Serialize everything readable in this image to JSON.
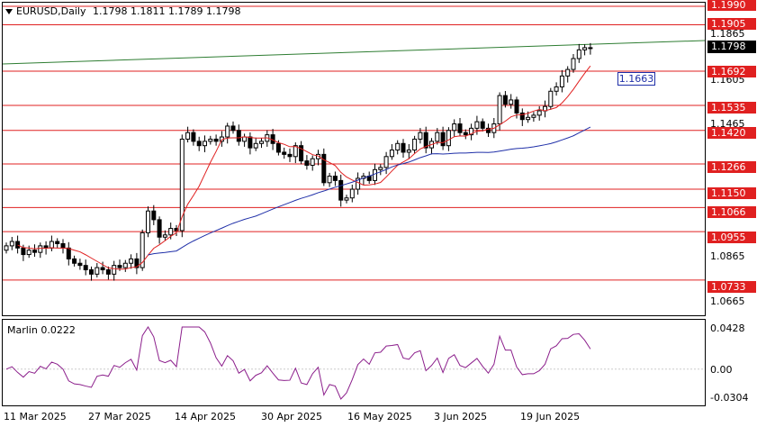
{
  "chart_header": {
    "symbol_label": "EURUSD,Daily",
    "open": "1.1798",
    "high": "1.1811",
    "low": "1.1789",
    "close": "1.1798",
    "dropdown_icon": "triangle-down-icon"
  },
  "price_axis": {
    "labels": [
      "1.1865",
      "1.1605",
      "1.1465",
      "1.0865",
      "1.0665"
    ],
    "levels": [
      "1.1990",
      "1.1905",
      "1.1692",
      "1.1535",
      "1.1420",
      "1.1266",
      "1.1150",
      "1.1066",
      "1.0955",
      "1.0733"
    ],
    "current_price": "1.1798",
    "ma_value": "1.1663"
  },
  "indicator": {
    "title": "Marlin 0.0222",
    "axis_labels": [
      "0.0428",
      "0.00",
      "-0.0304"
    ]
  },
  "time_axis": {
    "dates": [
      "11 Mar 2025",
      "27 Mar 2025",
      "14 Apr 2025",
      "30 Apr 2025",
      "16 May 2025",
      "3 Jun 2025",
      "19 Jun 2025"
    ]
  },
  "colors": {
    "level_line": "#e02020",
    "ma_blue": "#1f2fa8",
    "ma_red": "#e02020",
    "trend_green": "#2e7d32",
    "oscillator": "#8b1e8b"
  },
  "chart_data": {
    "type": "candlestick",
    "ohlc_last": {
      "open": 1.1798,
      "high": 1.1811,
      "low": 1.1789,
      "close": 1.1798
    },
    "horizontal_levels": [
      1.199,
      1.1905,
      1.1692,
      1.1535,
      1.142,
      1.1266,
      1.115,
      1.1066,
      1.0955,
      1.0733
    ],
    "ma_blue_last": 1.1663,
    "oscillator_value": 0.0222,
    "oscillator_range": [
      -0.0304,
      0.0428
    ],
    "closes": [
      1.089,
      1.091,
      1.088,
      1.085,
      1.087,
      1.086,
      1.089,
      1.088,
      1.091,
      1.09,
      1.088,
      1.083,
      1.081,
      1.08,
      1.078,
      1.076,
      1.079,
      1.078,
      1.076,
      1.08,
      1.079,
      1.081,
      1.083,
      1.079,
      1.095,
      1.105,
      1.101,
      1.093,
      1.094,
      1.097,
      1.096,
      1.138,
      1.141,
      1.137,
      1.135,
      1.137,
      1.138,
      1.137,
      1.139,
      1.144,
      1.142,
      1.137,
      1.139,
      1.134,
      1.136,
      1.137,
      1.14,
      1.136,
      1.132,
      1.131,
      1.13,
      1.135,
      1.128,
      1.126,
      1.129,
      1.131,
      1.118,
      1.121,
      1.119,
      1.11,
      1.111,
      1.115,
      1.12,
      1.121,
      1.119,
      1.124,
      1.125,
      1.13,
      1.133,
      1.136,
      1.132,
      1.133,
      1.138,
      1.141,
      1.134,
      1.137,
      1.141,
      1.135,
      1.142,
      1.145,
      1.141,
      1.14,
      1.143,
      1.146,
      1.143,
      1.141,
      1.145,
      1.158,
      1.154,
      1.156,
      1.15,
      1.147,
      1.148,
      1.149,
      1.151,
      1.153,
      1.16,
      1.162,
      1.167,
      1.17,
      1.175,
      1.179,
      1.18,
      1.1798
    ]
  }
}
